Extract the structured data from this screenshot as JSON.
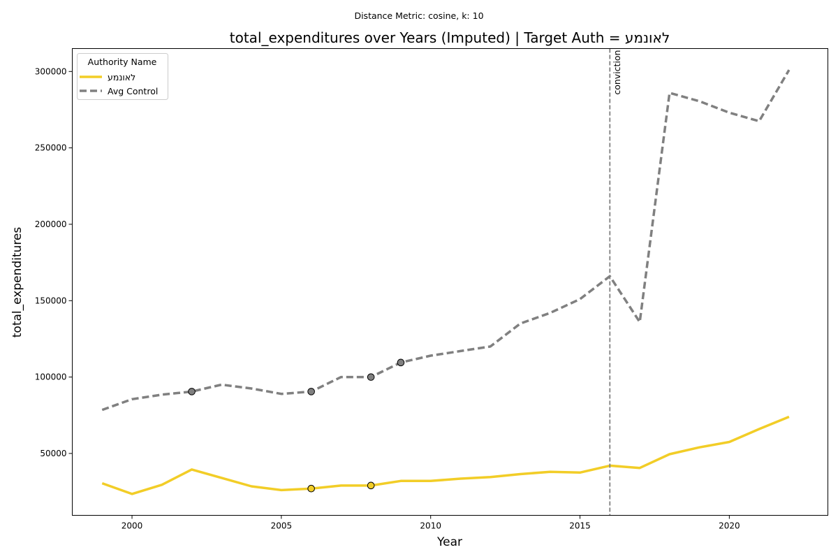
{
  "chart_data": {
    "type": "line",
    "suptitle": "Distance Metric: cosine, k: 10",
    "title": "total_expenditures over Years (Imputed) | Target Auth = לאונמע",
    "xlabel": "Year",
    "ylabel": "total_expenditures",
    "xlim": [
      1998.0,
      2023.3
    ],
    "ylim": [
      9500,
      315000
    ],
    "x_ticks": [
      2000,
      2005,
      2010,
      2015,
      2020
    ],
    "y_ticks": [
      50000,
      100000,
      150000,
      200000,
      250000,
      300000
    ],
    "grid": false,
    "legend": {
      "title": "Authority Name",
      "placement": "top-left"
    },
    "x": [
      1999,
      2000,
      2001,
      2002,
      2003,
      2004,
      2005,
      2006,
      2007,
      2008,
      2009,
      2010,
      2011,
      2012,
      2013,
      2014,
      2015,
      2016,
      2017,
      2018,
      2019,
      2020,
      2021,
      2022
    ],
    "series": [
      {
        "name": "לאונמע",
        "color": "#f2cd27",
        "style": "solid",
        "values": [
          30500,
          23500,
          29500,
          39500,
          34000,
          28500,
          26000,
          27000,
          29000,
          29000,
          32000,
          32000,
          33500,
          34500,
          36500,
          38000,
          37500,
          42000,
          40500,
          49500,
          54000,
          57500,
          66000,
          74000
        ],
        "imputed_markers": [
          2006,
          2008
        ]
      },
      {
        "name": "Avg Control",
        "color": "#808080",
        "style": "dashed",
        "values": [
          78500,
          85500,
          88500,
          90500,
          95000,
          92500,
          89000,
          90500,
          100000,
          100000,
          109500,
          114000,
          117000,
          120000,
          135000,
          142000,
          151000,
          166000,
          136000,
          286000,
          280500,
          273000,
          267500,
          301000
        ],
        "imputed_markers": [
          2002,
          2006,
          2008,
          2009
        ]
      }
    ],
    "annotations": [
      {
        "x": 2016,
        "label": "conviction",
        "line_style": "dashed",
        "line_color": "#808080"
      }
    ]
  }
}
